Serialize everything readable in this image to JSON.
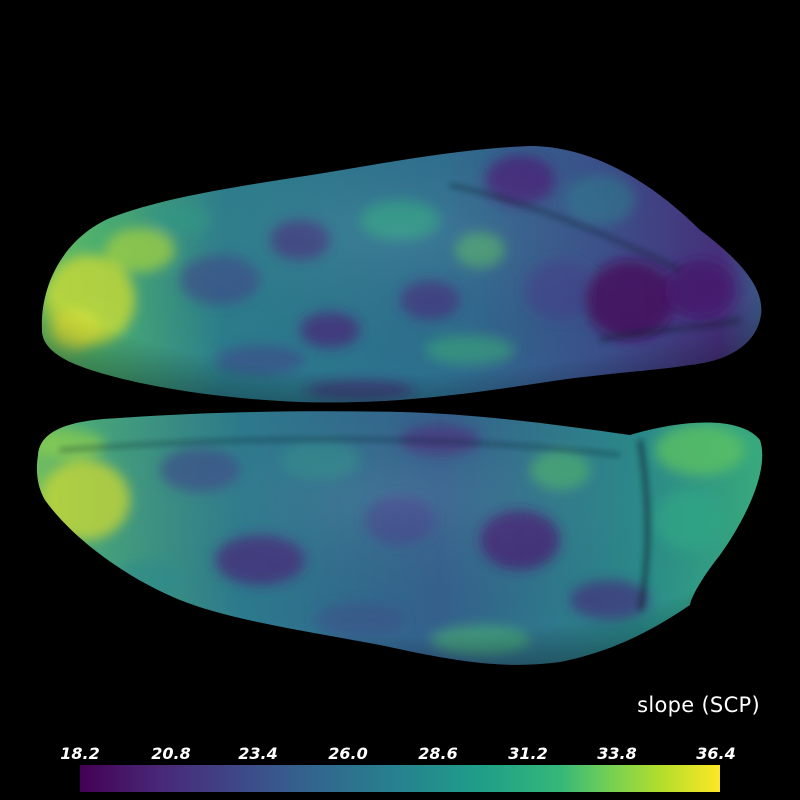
{
  "scalar_bar": {
    "title": "slope (SCP)",
    "ticks": [
      "18.2",
      "20.8",
      "23.4",
      "26.0",
      "28.6",
      "31.2",
      "33.8",
      "36.4"
    ],
    "range": [
      18.2,
      36.4
    ],
    "colormap": "viridis"
  },
  "colors": {
    "background": "#000000",
    "viridis_low": "#440154",
    "viridis_mid": "#26828e",
    "viridis_high": "#fde725"
  }
}
